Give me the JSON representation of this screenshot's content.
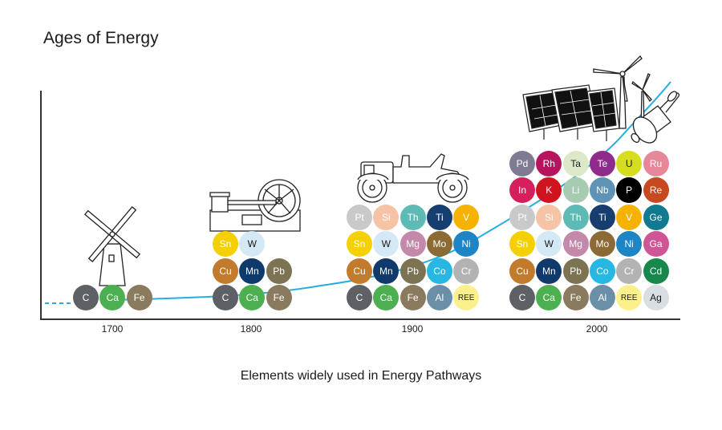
{
  "title": "Ages of Energy",
  "xlabel": "Elements widely used in Energy Pathways",
  "ticks": [
    "1700",
    "1800",
    "1900",
    "2000"
  ],
  "colors": {
    "curve": "#27aee0",
    "C": "#5d6165",
    "Ca": "#4caf50",
    "Fe": "#8a7a5e",
    "Sn": "#f5d000",
    "W": "#d4e8f6",
    "Cu": "#c27a2c",
    "Mn": "#103a6b",
    "Pb": "#7c7353",
    "Pt": "#c9c9c9",
    "Si": "#f7c3a5",
    "Th": "#5dbab4",
    "Ti": "#163f70",
    "V": "#f5b200",
    "Mg": "#c488ab",
    "Mo": "#8b6a36",
    "Ni": "#1d85c6",
    "Co": "#26b7e3",
    "Cr": "#b3b3b3",
    "Al": "#6a8fa6",
    "REE": "#fbf08c",
    "Pd": "#7e7b93",
    "Rh": "#b5145f",
    "Ta": "#dce9c9",
    "Te": "#8f2c8b",
    "U": "#d5dd1e",
    "Ru": "#e6879a",
    "In": "#d61f5c",
    "K": "#d0141f",
    "Li": "#a6cbb1",
    "Nb": "#5f93b6",
    "P": "#000000",
    "Re": "#c7491f",
    "Ge": "#0f7a91",
    "Ga": "#d05594",
    "Cd": "#18874c",
    "Ag": "#d9dee3"
  },
  "groups": [
    {
      "rows": [
        [
          "C",
          "Ca",
          "Fe"
        ]
      ]
    },
    {
      "rows": [
        [
          "C",
          "Ca",
          "Fe"
        ],
        [
          "Cu",
          "Mn",
          "Pb"
        ],
        [
          "Sn",
          "W"
        ]
      ]
    },
    {
      "rows": [
        [
          "C",
          "Ca",
          "Fe",
          "Al",
          "REE"
        ],
        [
          "Cu",
          "Mn",
          "Pb",
          "Co",
          "Cr"
        ],
        [
          "Sn",
          "W",
          "Mg",
          "Mo",
          "Ni"
        ],
        [
          "Pt",
          "Si",
          "Th",
          "Ti",
          "V"
        ]
      ]
    },
    {
      "rows": [
        [
          "C",
          "Ca",
          "Fe",
          "Al",
          "REE",
          "Ag"
        ],
        [
          "Cu",
          "Mn",
          "Pb",
          "Co",
          "Cr",
          "Cd"
        ],
        [
          "Sn",
          "W",
          "Mg",
          "Mo",
          "Ni",
          "Ga"
        ],
        [
          "Pt",
          "Si",
          "Th",
          "Ti",
          "V",
          "Ge"
        ],
        [
          "In",
          "K",
          "Li",
          "Nb",
          "P",
          "Re"
        ],
        [
          "Pd",
          "Rh",
          "Ta",
          "Te",
          "U",
          "Ru"
        ]
      ]
    }
  ],
  "icons": [
    "windmill-icon",
    "steam-engine-icon",
    "vintage-car-icon",
    "solar-panels-icon",
    "wind-turbines-icon",
    "catalytic-converter-icon"
  ]
}
